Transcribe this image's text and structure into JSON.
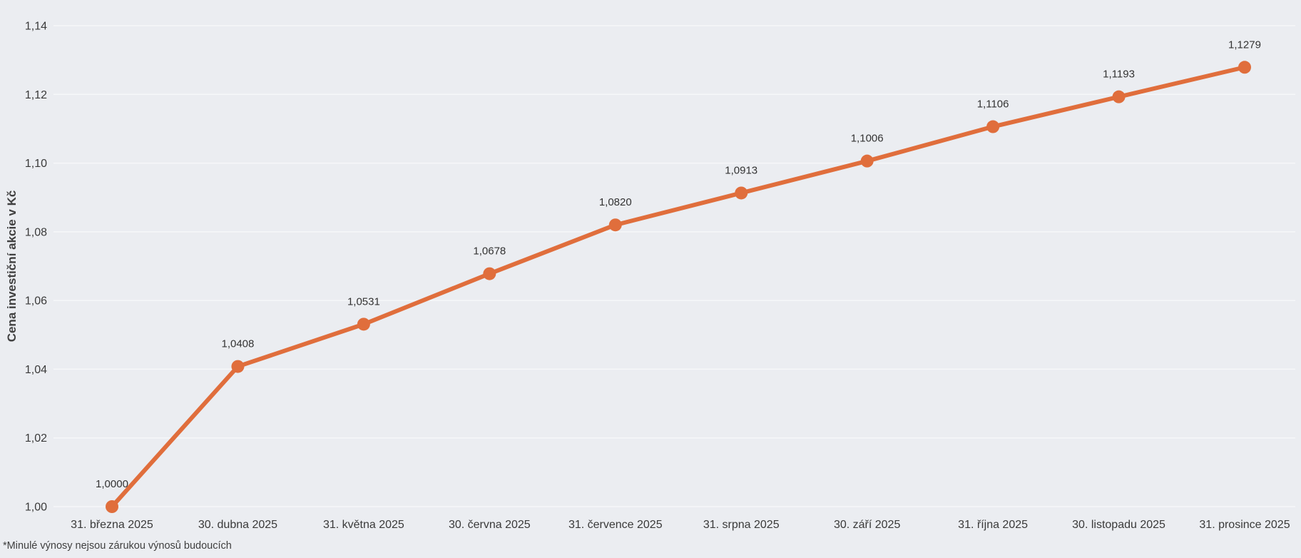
{
  "chart_data": {
    "type": "line",
    "title": "",
    "ylabel": "Cena investiční akcie v Kč",
    "xlabel": "",
    "footnote": "*Minulé výnosy nejsou zárukou výnosů budoucích",
    "categories": [
      "31. března 2025",
      "30. dubna 2025",
      "31. května 2025",
      "30. června 2025",
      "31. července 2025",
      "31. srpna 2025",
      "30. září 2025",
      "31. října 2025",
      "30. listopadu 2025",
      "31. prosince 2025"
    ],
    "values": [
      1.0,
      1.0408,
      1.0531,
      1.0678,
      1.082,
      1.0913,
      1.1006,
      1.1106,
      1.1193,
      1.1279
    ],
    "point_labels": [
      "1,0000",
      "1,0408",
      "1,0531",
      "1,0678",
      "1,0820",
      "1,0913",
      "1,1006",
      "1,1106",
      "1,1193",
      "1,1279"
    ],
    "y_ticks": {
      "values": [
        1.0,
        1.02,
        1.04,
        1.06,
        1.08,
        1.1,
        1.12,
        1.14
      ],
      "labels": [
        "1,00",
        "1,02",
        "1,04",
        "1,06",
        "1,08",
        "1,10",
        "1,12",
        "1,14"
      ]
    },
    "ylim": [
      1.0,
      1.14
    ],
    "grid": "horizontal-only",
    "legend": "none",
    "marker": "filled-circle",
    "colors": {
      "line": "#E06E3C",
      "marker": "#E06E3C",
      "background": "#EBEDF1",
      "gridline": "#F6F7F9",
      "tick_text": "#3A3A3A",
      "data_label_text": "#333333",
      "axis_title_text": "#404040",
      "footnote_text": "#3F3F3F"
    }
  }
}
